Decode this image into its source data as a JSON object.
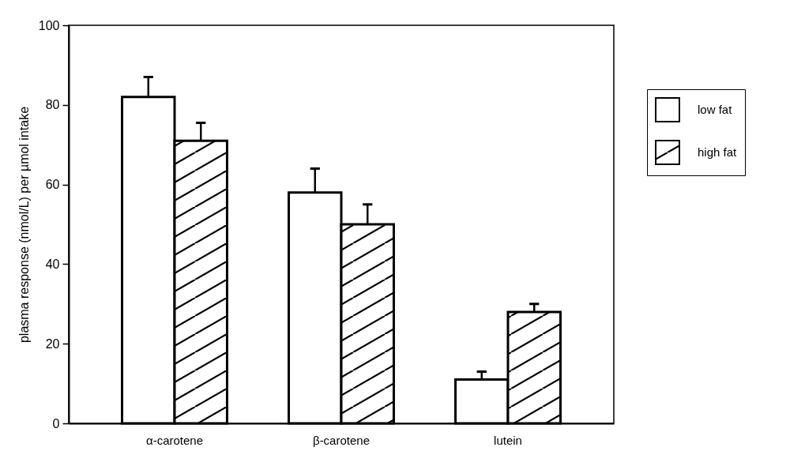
{
  "chart_data": {
    "type": "bar",
    "ylabel": "plasma response (nmol/L) per µmol intake",
    "categories": [
      "α-carotene",
      "β-carotene",
      "lutein"
    ],
    "series": [
      {
        "name": "low fat",
        "color": "#ffffff",
        "values": [
          82,
          58,
          11
        ],
        "errors": [
          5,
          6,
          2
        ]
      },
      {
        "name": "high fat",
        "color": "#ffffff",
        "values": [
          71,
          50,
          28
        ],
        "errors": [
          4.5,
          5,
          2
        ]
      }
    ],
    "ylim": [
      0,
      100
    ],
    "yticks": [
      0,
      20,
      40,
      60,
      80,
      100
    ],
    "grid": false,
    "legend": "right"
  }
}
